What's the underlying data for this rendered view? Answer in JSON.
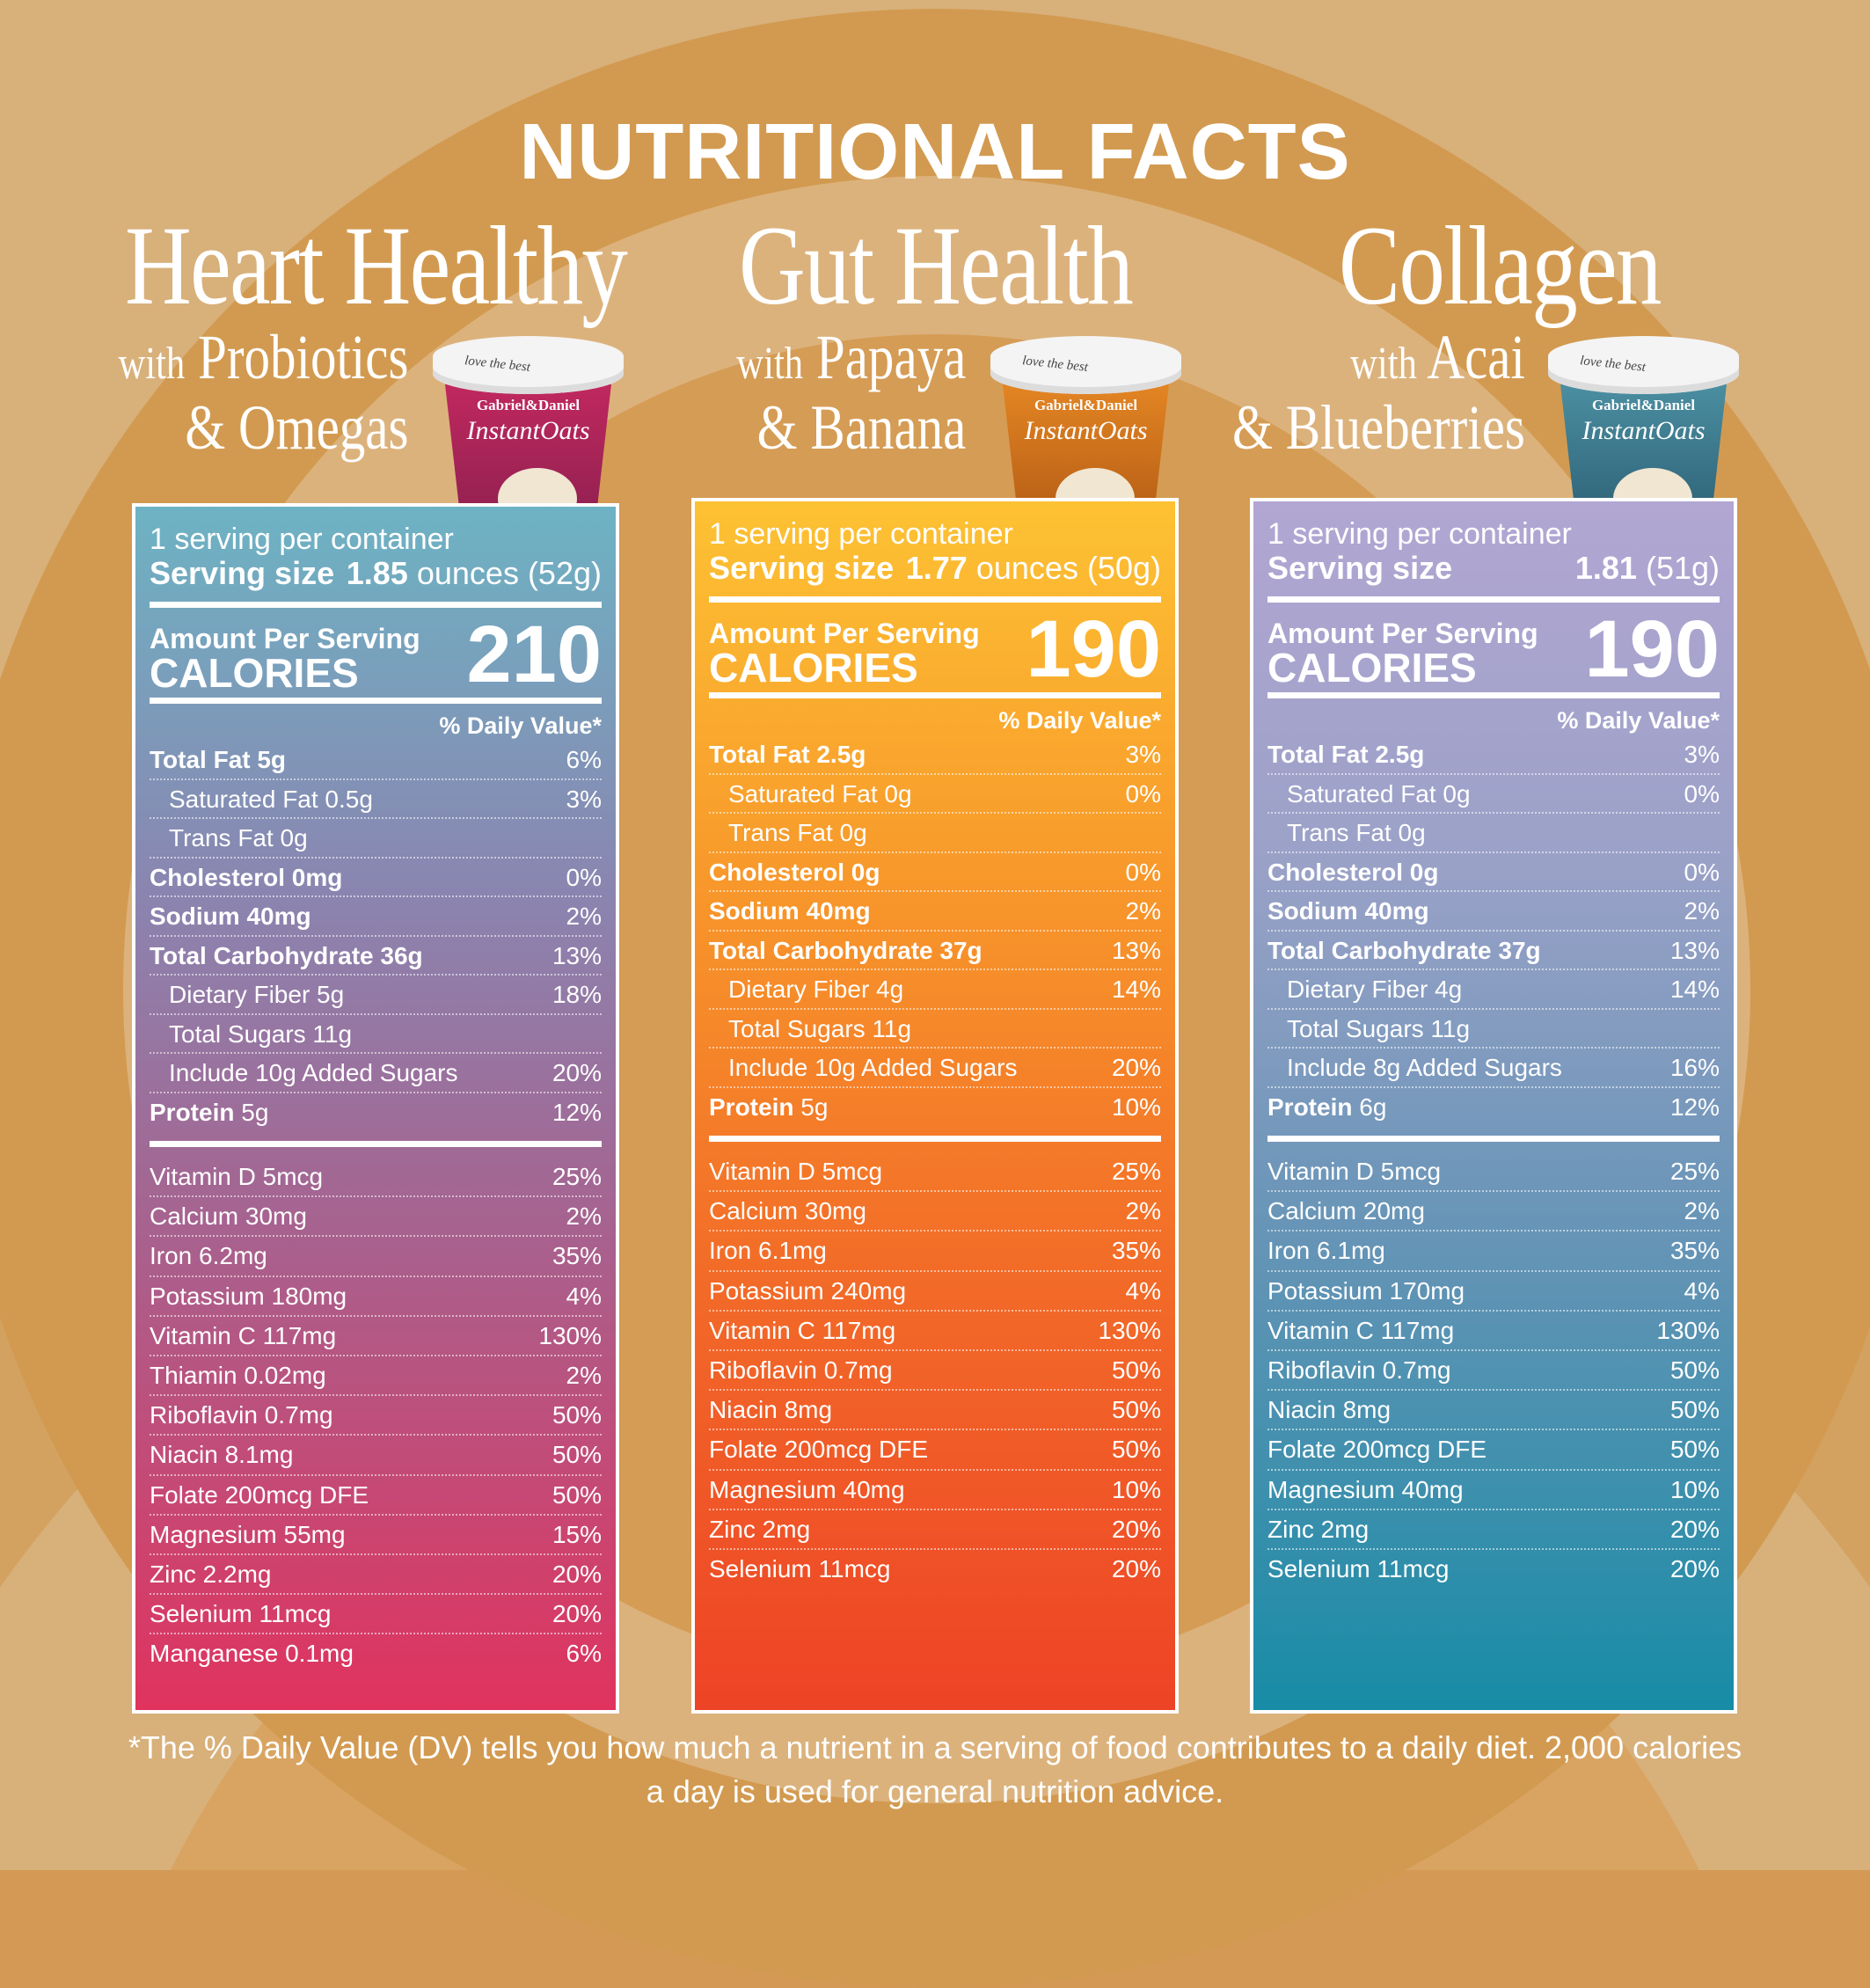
{
  "title": "NUTRITIONAL FACTS",
  "colors": {
    "heart_top": "#6db3c4",
    "heart_bottom": "#e0335e",
    "gut_top": "#fdc233",
    "gut_bottom": "#ee4326",
    "collagen_top": "#b2a6d3",
    "collagen_bottom": "#178ca6"
  },
  "cup": {
    "lid_text": "love the best",
    "brand": "Gabriel&Daniel",
    "line": "InstantOats"
  },
  "products": [
    {
      "name": "Heart Healthy",
      "with": "with",
      "sub1": "Probiotics",
      "sub2": "& Omegas",
      "servings": "1 serving per container",
      "serving_size_label": "Serving size",
      "serving_size_value": "1.85",
      "serving_size_unit": "ounces (52g)",
      "amount_label": "Amount Per Serving",
      "calories_label": "CALORIES",
      "calories": "210",
      "dv_label": "% Daily Value*",
      "nutrients": [
        {
          "name": "Total Fat 5g",
          "dv": "6%",
          "bold": true,
          "indent": false
        },
        {
          "name": "Saturated Fat 0.5g",
          "dv": "3%",
          "bold": false,
          "indent": true
        },
        {
          "name": "Trans Fat 0g",
          "dv": "",
          "bold": false,
          "indent": true
        },
        {
          "name": "Cholesterol 0mg",
          "dv": "0%",
          "bold": true,
          "indent": false
        },
        {
          "name": "Sodium 40mg",
          "dv": "2%",
          "bold": true,
          "indent": false
        },
        {
          "name": "Total Carbohydrate 36g",
          "dv": "13%",
          "bold": true,
          "indent": false
        },
        {
          "name": "Dietary Fiber 5g",
          "dv": "18%",
          "bold": false,
          "indent": true
        },
        {
          "name": "Total Sugars 11g",
          "dv": "",
          "bold": false,
          "indent": true
        },
        {
          "name": "Include 10g Added Sugars",
          "dv": "20%",
          "bold": false,
          "indent": true
        },
        {
          "name": "Protein",
          "amt": "5g",
          "dv": "12%",
          "bold": true,
          "indent": false
        }
      ],
      "vitamins": [
        {
          "name": "Vitamin D 5mcg",
          "dv": "25%"
        },
        {
          "name": "Calcium 30mg",
          "dv": "2%"
        },
        {
          "name": "Iron 6.2mg",
          "dv": "35%"
        },
        {
          "name": "Potassium 180mg",
          "dv": "4%"
        },
        {
          "name": "Vitamin C 117mg",
          "dv": "130%"
        },
        {
          "name": "Thiamin 0.02mg",
          "dv": "2%"
        },
        {
          "name": "Riboflavin 0.7mg",
          "dv": "50%"
        },
        {
          "name": "Niacin 8.1mg",
          "dv": "50%"
        },
        {
          "name": "Folate 200mcg DFE",
          "dv": "50%"
        },
        {
          "name": "Magnesium 55mg",
          "dv": "15%"
        },
        {
          "name": "Zinc 2.2mg",
          "dv": "20%"
        },
        {
          "name": "Selenium 11mcg",
          "dv": "20%"
        },
        {
          "name": "Manganese 0.1mg",
          "dv": "6%"
        }
      ]
    },
    {
      "name": "Gut Health",
      "with": "with",
      "sub1": "Papaya",
      "sub2": "& Banana",
      "servings": "1 serving per container",
      "serving_size_label": "Serving size",
      "serving_size_value": "1.77",
      "serving_size_unit": "ounces (50g)",
      "amount_label": "Amount Per Serving",
      "calories_label": "CALORIES",
      "calories": "190",
      "dv_label": "% Daily Value*",
      "nutrients": [
        {
          "name": "Total Fat 2.5g",
          "dv": "3%",
          "bold": true,
          "indent": false
        },
        {
          "name": "Saturated Fat 0g",
          "dv": "0%",
          "bold": false,
          "indent": true
        },
        {
          "name": "Trans Fat 0g",
          "dv": "",
          "bold": false,
          "indent": true
        },
        {
          "name": "Cholesterol 0g",
          "dv": "0%",
          "bold": true,
          "indent": false
        },
        {
          "name": "Sodium 40mg",
          "dv": "2%",
          "bold": true,
          "indent": false
        },
        {
          "name": "Total Carbohydrate 37g",
          "dv": "13%",
          "bold": true,
          "indent": false
        },
        {
          "name": "Dietary Fiber 4g",
          "dv": "14%",
          "bold": false,
          "indent": true
        },
        {
          "name": "Total Sugars 11g",
          "dv": "",
          "bold": false,
          "indent": true
        },
        {
          "name": "Include 10g Added Sugars",
          "dv": "20%",
          "bold": false,
          "indent": true
        },
        {
          "name": "Protein",
          "amt": "5g",
          "dv": "10%",
          "bold": true,
          "indent": false
        }
      ],
      "vitamins": [
        {
          "name": "Vitamin D 5mcg",
          "dv": "25%"
        },
        {
          "name": "Calcium 30mg",
          "dv": "2%"
        },
        {
          "name": "Iron 6.1mg",
          "dv": "35%"
        },
        {
          "name": "Potassium 240mg",
          "dv": "4%"
        },
        {
          "name": "Vitamin C 117mg",
          "dv": "130%"
        },
        {
          "name": "Riboflavin 0.7mg",
          "dv": "50%"
        },
        {
          "name": "Niacin 8mg",
          "dv": "50%"
        },
        {
          "name": "Folate 200mcg DFE",
          "dv": "50%"
        },
        {
          "name": "Magnesium 40mg",
          "dv": "10%"
        },
        {
          "name": "Zinc 2mg",
          "dv": "20%"
        },
        {
          "name": "Selenium 11mcg",
          "dv": "20%"
        }
      ]
    },
    {
      "name": "Collagen",
      "with": "with",
      "sub1": "Acai",
      "sub2": "& Blueberries",
      "servings": "1 serving per container",
      "serving_size_label": "Serving size",
      "serving_size_value": "1.81",
      "serving_size_unit": "(51g)",
      "amount_label": "Amount Per Serving",
      "calories_label": "CALORIES",
      "calories": "190",
      "dv_label": "% Daily Value*",
      "nutrients": [
        {
          "name": "Total Fat 2.5g",
          "dv": "3%",
          "bold": true,
          "indent": false
        },
        {
          "name": "Saturated Fat 0g",
          "dv": "0%",
          "bold": false,
          "indent": true
        },
        {
          "name": "Trans Fat 0g",
          "dv": "",
          "bold": false,
          "indent": true
        },
        {
          "name": "Cholesterol 0g",
          "dv": "0%",
          "bold": true,
          "indent": false
        },
        {
          "name": "Sodium 40mg",
          "dv": "2%",
          "bold": true,
          "indent": false
        },
        {
          "name": "Total Carbohydrate 37g",
          "dv": "13%",
          "bold": true,
          "indent": false
        },
        {
          "name": "Dietary Fiber 4g",
          "dv": "14%",
          "bold": false,
          "indent": true
        },
        {
          "name": "Total Sugars 11g",
          "dv": "",
          "bold": false,
          "indent": true
        },
        {
          "name": "Include 8g Added Sugars",
          "dv": "16%",
          "bold": false,
          "indent": true
        },
        {
          "name": "Protein",
          "amt": "6g",
          "dv": "12%",
          "bold": true,
          "indent": false
        }
      ],
      "vitamins": [
        {
          "name": "Vitamin D 5mcg",
          "dv": "25%"
        },
        {
          "name": "Calcium 20mg",
          "dv": "2%"
        },
        {
          "name": "Iron 6.1mg",
          "dv": "35%"
        },
        {
          "name": "Potassium 170mg",
          "dv": "4%"
        },
        {
          "name": "Vitamin C 117mg",
          "dv": "130%"
        },
        {
          "name": "Riboflavin 0.7mg",
          "dv": "50%"
        },
        {
          "name": "Niacin 8mg",
          "dv": "50%"
        },
        {
          "name": "Folate 200mcg DFE",
          "dv": "50%"
        },
        {
          "name": "Magnesium 40mg",
          "dv": "10%"
        },
        {
          "name": "Zinc 2mg",
          "dv": "20%"
        },
        {
          "name": "Selenium 11mcg",
          "dv": "20%"
        }
      ]
    }
  ],
  "footnote": "*The % Daily Value (DV) tells you how much a nutrient in a serving of food contributes to a daily diet. 2,000 calories a day is used for general nutrition advice."
}
